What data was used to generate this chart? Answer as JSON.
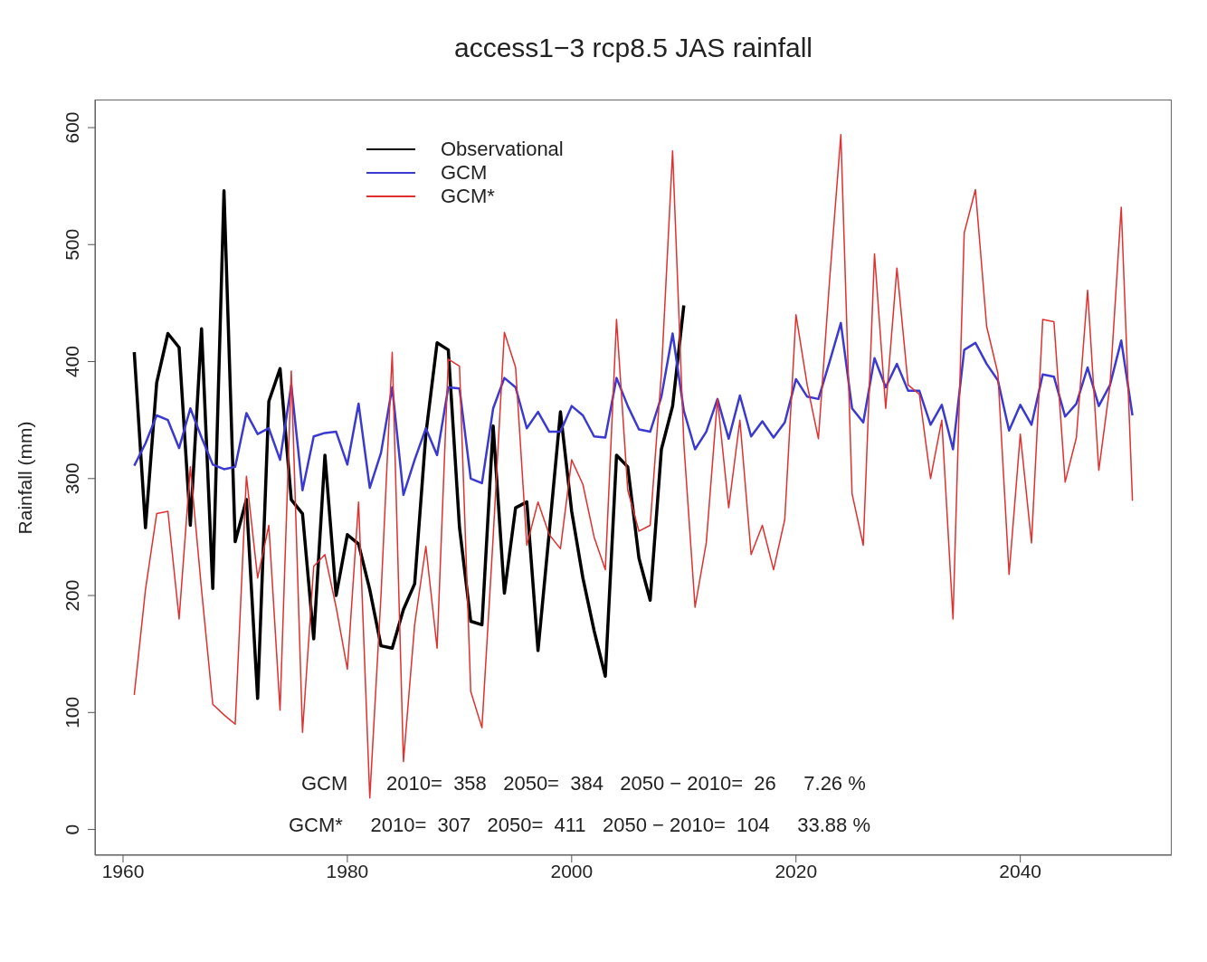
{
  "chart_data": {
    "type": "line",
    "title": "access1−3 rcp8.5  JAS rainfall",
    "ylabel": "Rainfall (mm)",
    "x": [
      1961,
      1962,
      1963,
      1964,
      1965,
      1966,
      1967,
      1968,
      1969,
      1970,
      1971,
      1972,
      1973,
      1974,
      1975,
      1976,
      1977,
      1978,
      1979,
      1980,
      1981,
      1982,
      1983,
      1984,
      1985,
      1986,
      1987,
      1988,
      1989,
      1990,
      1991,
      1992,
      1993,
      1994,
      1995,
      1996,
      1997,
      1998,
      1999,
      2000,
      2001,
      2002,
      2003,
      2004,
      2005,
      2006,
      2007,
      2008,
      2009,
      2010,
      2011,
      2012,
      2013,
      2014,
      2015,
      2016,
      2017,
      2018,
      2019,
      2020,
      2021,
      2022,
      2023,
      2024,
      2025,
      2026,
      2027,
      2028,
      2029,
      2030,
      2031,
      2032,
      2033,
      2034,
      2035,
      2036,
      2037,
      2038,
      2039,
      2040,
      2041,
      2042,
      2043,
      2044,
      2045,
      2046,
      2047,
      2048,
      2049,
      2050
    ],
    "series": [
      {
        "name": "Observational",
        "color": "#000000",
        "x": [
          1961,
          1962,
          1963,
          1964,
          1965,
          1966,
          1967,
          1968,
          1969,
          1970,
          1971,
          1972,
          1973,
          1974,
          1975,
          1976,
          1977,
          1978,
          1979,
          1980,
          1981,
          1982,
          1983,
          1984,
          1985,
          1986,
          1987,
          1988,
          1989,
          1990,
          1991,
          1992,
          1993,
          1994,
          1995,
          1996,
          1997,
          1998,
          1999,
          2000,
          2001,
          2002,
          2003,
          2004,
          2005,
          2006,
          2007,
          2008,
          2009,
          2010
        ],
        "values": [
          408,
          258,
          382,
          424,
          412,
          260,
          428,
          206,
          546,
          246,
          282,
          112,
          366,
          394,
          282,
          270,
          163,
          320,
          200,
          252,
          244,
          205,
          157,
          155,
          188,
          210,
          338,
          416,
          410,
          258,
          178,
          175,
          345,
          202,
          275,
          280,
          153,
          254,
          357,
          272,
          215,
          170,
          131,
          320,
          310,
          232,
          196,
          325,
          362,
          448
        ]
      },
      {
        "name": "GCM",
        "color": "#3a3ad0",
        "values": [
          311,
          330,
          354,
          350,
          326,
          360,
          335,
          312,
          308,
          310,
          356,
          338,
          343,
          316,
          380,
          290,
          336,
          339,
          340,
          312,
          364,
          292,
          322,
          378,
          286,
          316,
          343,
          320,
          378,
          377,
          300,
          296,
          360,
          386,
          378,
          343,
          357,
          340,
          340,
          362,
          354,
          336,
          335,
          386,
          362,
          342,
          340,
          370,
          424,
          358,
          325,
          340,
          368,
          334,
          371,
          336,
          349,
          335,
          348,
          385,
          370,
          368,
          400,
          433,
          360,
          348,
          403,
          378,
          398,
          375,
          375,
          346,
          363,
          325,
          410,
          416,
          398,
          384,
          341,
          363,
          346,
          389,
          387,
          353,
          364,
          395,
          362,
          380,
          418,
          354
        ]
      },
      {
        "name": "GCM*",
        "color": "#e03030",
        "values": [
          115,
          205,
          270,
          272,
          180,
          310,
          205,
          107,
          98,
          90,
          302,
          215,
          260,
          102,
          392,
          83,
          225,
          235,
          190,
          137,
          280,
          27,
          200,
          408,
          58,
          175,
          242,
          155,
          402,
          396,
          118,
          87,
          250,
          425,
          395,
          243,
          280,
          252,
          240,
          316,
          295,
          250,
          222,
          436,
          290,
          255,
          260,
          390,
          580,
          330,
          190,
          245,
          368,
          275,
          350,
          235,
          260,
          222,
          265,
          440,
          380,
          334,
          470,
          594,
          287,
          243,
          492,
          360,
          480,
          380,
          372,
          300,
          350,
          180,
          510,
          547,
          430,
          390,
          218,
          338,
          245,
          436,
          434,
          297,
          335,
          461,
          307,
          380,
          532,
          281
        ]
      }
    ],
    "xlim": [
      1957.5,
      2053.5
    ],
    "xticks": [
      1960,
      1980,
      2000,
      2020,
      2040
    ],
    "ylim": [
      -22,
      624
    ],
    "yticks": [
      0,
      100,
      200,
      300,
      400,
      500,
      600
    ],
    "legend": "top left",
    "annotations": [
      "GCM       2010=  358   2050=  384   2050 − 2010=  26     7.26 %",
      "GCM*     2010=  307   2050=  411   2050 − 2010=  104     33.88 %"
    ]
  }
}
